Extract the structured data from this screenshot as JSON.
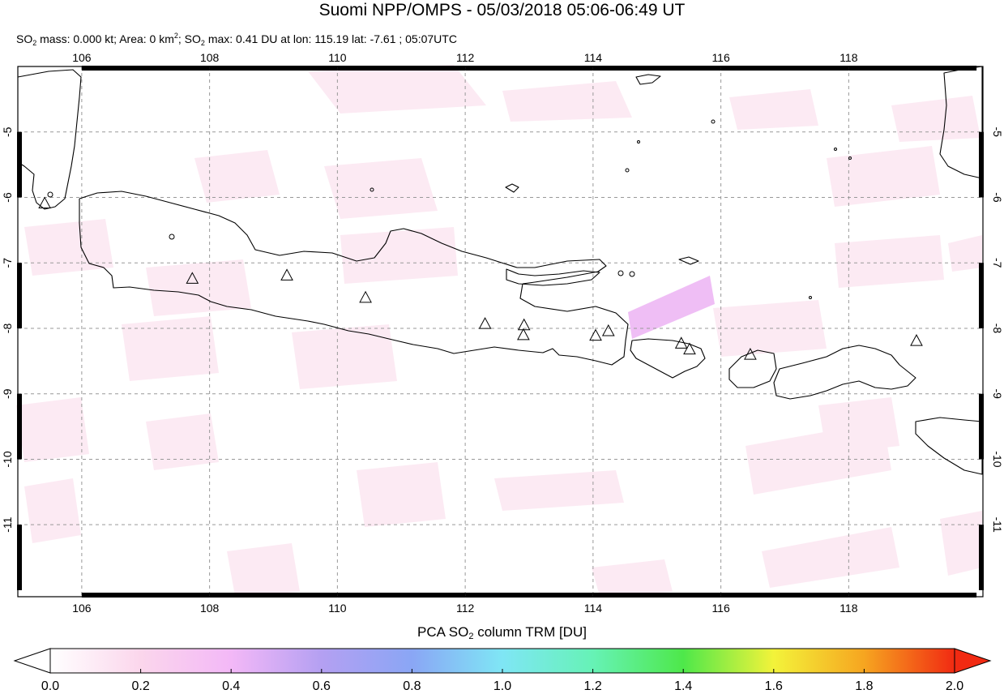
{
  "title": "Suomi NPP/OMPS - 05/03/2018 05:06-06:49 UT",
  "subtitle": {
    "p1": "SO",
    "p1_sub": "2",
    "p2": " mass: 0.000 kt; Area: 0 km",
    "p2_sup": "2",
    "p3": "; SO",
    "p3_sub": "2",
    "p4": " max: 0.41 DU at lon: 115.19 lat: -7.61 ; 05:07UTC"
  },
  "map": {
    "lon_ticks": [
      "106",
      "108",
      "110",
      "112",
      "114",
      "116",
      "118"
    ],
    "lon_values": [
      106,
      108,
      110,
      112,
      114,
      116,
      118
    ],
    "lat_ticks": [
      "-5",
      "-6",
      "-7",
      "-8",
      "-9",
      "-10",
      "-11"
    ],
    "lat_values": [
      -5,
      -6,
      -7,
      -8,
      -9,
      -10,
      -11
    ],
    "lon_range": [
      105,
      120.1
    ],
    "lat_range": [
      -12.1,
      -4
    ],
    "grid": "dashed",
    "coast_color": "#000000",
    "volcano_marker": "triangle-icon",
    "volcanoes": [
      {
        "lon": 105.42,
        "lat": -6.1
      },
      {
        "lon": 107.73,
        "lat": -7.25
      },
      {
        "lon": 109.21,
        "lat": -7.2
      },
      {
        "lon": 110.44,
        "lat": -7.54
      },
      {
        "lon": 112.31,
        "lat": -7.94
      },
      {
        "lon": 112.92,
        "lat": -7.96
      },
      {
        "lon": 112.91,
        "lat": -8.11
      },
      {
        "lon": 114.04,
        "lat": -8.12
      },
      {
        "lon": 114.24,
        "lat": -8.05
      },
      {
        "lon": 115.38,
        "lat": -8.24
      },
      {
        "lon": 115.51,
        "lat": -8.33
      },
      {
        "lon": 116.46,
        "lat": -8.41
      },
      {
        "lon": 119.06,
        "lat": -8.2
      }
    ],
    "so2_max_pixel": {
      "lon": 115.19,
      "lat": -7.61,
      "value_du": 0.41
    }
  },
  "colorbar": {
    "title_p1": "PCA SO",
    "title_sub": "2",
    "title_p2": " column TRM [DU]",
    "ticks": [
      "0.0",
      "0.2",
      "0.4",
      "0.6",
      "0.8",
      "1.0",
      "1.2",
      "1.4",
      "1.6",
      "1.8",
      "2.0"
    ],
    "tick_values": [
      0.0,
      0.2,
      0.4,
      0.6,
      0.8,
      1.0,
      1.2,
      1.4,
      1.6,
      1.8,
      2.0
    ],
    "range": [
      0.0,
      2.0
    ],
    "colors": [
      "#ffffff",
      "#fbd6ec",
      "#f3b8f7",
      "#b4a0f2",
      "#8aa6f5",
      "#7fe6f5",
      "#66f2b6",
      "#4ee84a",
      "#f3f33a",
      "#f6a520",
      "#f12a12"
    ],
    "under_color": "#ffffff",
    "over_color": "#f12a12"
  }
}
